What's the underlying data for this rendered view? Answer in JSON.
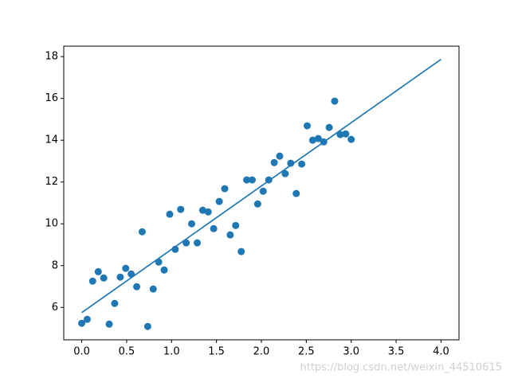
{
  "chart_data": {
    "type": "scatter",
    "series": [
      {
        "type": "scatter",
        "color": "#1f77b4",
        "x": [
          0,
          0.061,
          0.122,
          0.184,
          0.245,
          0.306,
          0.367,
          0.429,
          0.49,
          0.551,
          0.612,
          0.673,
          0.735,
          0.796,
          0.857,
          0.918,
          0.98,
          1.041,
          1.102,
          1.163,
          1.224,
          1.286,
          1.347,
          1.408,
          1.469,
          1.531,
          1.592,
          1.653,
          1.714,
          1.776,
          1.837,
          1.898,
          1.959,
          2.02,
          2.082,
          2.143,
          2.204,
          2.265,
          2.327,
          2.388,
          2.449,
          2.51,
          2.571,
          2.633,
          2.694,
          2.755,
          2.816,
          2.878,
          2.939,
          3.0
        ],
        "values": [
          5.24,
          5.43,
          7.26,
          7.71,
          7.41,
          5.2,
          6.19,
          7.45,
          7.87,
          7.6,
          6.99,
          9.62,
          5.09,
          6.88,
          8.17,
          7.79,
          10.46,
          8.78,
          10.69,
          9.09,
          10.0,
          9.09,
          10.65,
          10.57,
          9.77,
          11.07,
          11.68,
          9.47,
          9.92,
          8.67,
          12.1,
          12.1,
          10.95,
          11.56,
          12.1,
          12.93,
          13.24,
          12.4,
          12.9,
          11.45,
          12.86,
          14.69,
          14.0,
          14.08,
          13.92,
          14.61,
          15.87,
          14.27,
          14.3,
          14.04
        ]
      },
      {
        "type": "line",
        "color": "#1f77b4",
        "x": [
          0,
          4
        ],
        "values": [
          5.75,
          17.87
        ]
      }
    ],
    "xlim": [
      -0.2,
      4.2
    ],
    "xticks": [
      {
        "value": 0,
        "label": "0.0"
      },
      0.5,
      {
        "value": 1,
        "label": "1.0"
      },
      1.5,
      {
        "value": 2,
        "label": "2.0"
      },
      2.5,
      {
        "value": 3,
        "label": "3.0"
      },
      3.5,
      {
        "value": 4,
        "label": "4.0"
      }
    ],
    "ylim": [
      4.45,
      18.5
    ],
    "yticks": [
      6,
      8,
      10,
      12,
      14,
      16,
      18
    ],
    "watermark": "https://blog.csdn.net/weixin_44510615"
  }
}
